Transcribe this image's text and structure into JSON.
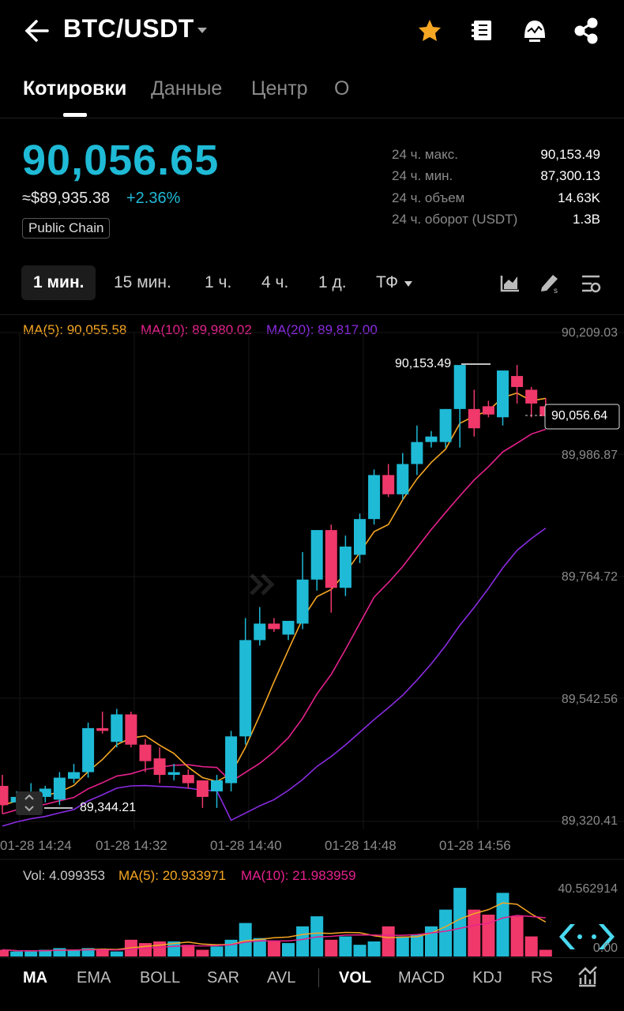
{
  "header": {
    "title": "BTC/USDT"
  },
  "tabs": [
    "Котировки",
    "Данные",
    "Центр",
    "О"
  ],
  "price": {
    "last": "90,056.65",
    "usd": "≈$89,935.38",
    "change": "+2.36%",
    "badge": "Public Chain"
  },
  "stats": [
    {
      "label": "24 ч. макс.",
      "value": "90,153.49"
    },
    {
      "label": "24 ч. мин.",
      "value": "87,300.13"
    },
    {
      "label": "24 ч. объем",
      "value": "14.63K"
    },
    {
      "label": "24 ч. оборот (USDT)",
      "value": "1.3B"
    }
  ],
  "timeframes": [
    "1 мин.",
    "15 мин.",
    "1 ч.",
    "4 ч.",
    "1 д.",
    "ТФ"
  ],
  "ma": {
    "ma5": "MA(5): 90,055.58",
    "ma10": "MA(10): 89,980.02",
    "ma20": "MA(20): 89,817.00"
  },
  "yaxis": [
    "90,209.03",
    "89,986.87",
    "89,764.72",
    "89,542.56",
    "89,320.41"
  ],
  "high_label": "90,153.49",
  "low_label": "89,344.21",
  "current_label": "90,056.64",
  "xaxis": [
    "01-28 14:24",
    "01-28 14:32",
    "01-28 14:40",
    "01-28 14:48",
    "01-28 14:56"
  ],
  "volume": {
    "vol": "Vol: 4.099353",
    "ma5": "MA(5): 20.933971",
    "ma10": "MA(10): 21.983959",
    "max": "40.562914",
    "zero": "0.00"
  },
  "indicators": [
    "MA",
    "EMA",
    "BOLL",
    "SAR",
    "AVL",
    "VOL",
    "MACD",
    "KDJ",
    "RS"
  ],
  "colors": {
    "up": "#1fbad6",
    "down": "#f0386b",
    "ma5": "#f5a623",
    "ma10": "#e6218d",
    "ma20": "#8a2be2"
  },
  "chart_data": {
    "type": "candlestick",
    "y_range": [
      89320.41,
      90209.03
    ],
    "volume_range": [
      0,
      40.562914
    ],
    "candles": [
      {
        "o": 89385,
        "h": 89405,
        "l": 89335,
        "c": 89350,
        "v": 4
      },
      {
        "o": 89355,
        "h": 89375,
        "l": 89340,
        "c": 89365,
        "v": 3
      },
      {
        "o": 89350,
        "h": 89390,
        "l": 89340,
        "c": 89375,
        "v": 3
      },
      {
        "o": 89365,
        "h": 89385,
        "l": 89355,
        "c": 89380,
        "v": 4
      },
      {
        "o": 89360,
        "h": 89410,
        "l": 89350,
        "c": 89400,
        "v": 5
      },
      {
        "o": 89398,
        "h": 89425,
        "l": 89390,
        "c": 89410,
        "v": 4
      },
      {
        "o": 89410,
        "h": 89500,
        "l": 89400,
        "c": 89490,
        "v": 5
      },
      {
        "o": 89490,
        "h": 89520,
        "l": 89480,
        "c": 89485,
        "v": 4
      },
      {
        "o": 89465,
        "h": 89525,
        "l": 89455,
        "c": 89515,
        "v": 3
      },
      {
        "o": 89515,
        "h": 89520,
        "l": 89455,
        "c": 89460,
        "v": 10
      },
      {
        "o": 89460,
        "h": 89470,
        "l": 89410,
        "c": 89430,
        "v": 8
      },
      {
        "o": 89435,
        "h": 89455,
        "l": 89390,
        "c": 89405,
        "v": 9
      },
      {
        "o": 89405,
        "h": 89425,
        "l": 89395,
        "c": 89410,
        "v": 9
      },
      {
        "o": 89405,
        "h": 89415,
        "l": 89380,
        "c": 89390,
        "v": 7
      },
      {
        "o": 89395,
        "h": 89395,
        "l": 89345,
        "c": 89365,
        "v": 4
      },
      {
        "o": 89375,
        "h": 89405,
        "l": 89345,
        "c": 89395,
        "v": 6
      },
      {
        "o": 89390,
        "h": 89485,
        "l": 89375,
        "c": 89475,
        "v": 10
      },
      {
        "o": 89475,
        "h": 89690,
        "l": 89460,
        "c": 89650,
        "v": 20
      },
      {
        "o": 89650,
        "h": 89710,
        "l": 89640,
        "c": 89680,
        "v": 11
      },
      {
        "o": 89680,
        "h": 89690,
        "l": 89665,
        "c": 89670,
        "v": 9
      },
      {
        "o": 89660,
        "h": 89685,
        "l": 89650,
        "c": 89685,
        "v": 8
      },
      {
        "o": 89680,
        "h": 89810,
        "l": 89670,
        "c": 89760,
        "v": 18
      },
      {
        "o": 89760,
        "h": 89850,
        "l": 89740,
        "c": 89850,
        "v": 24
      },
      {
        "o": 89850,
        "h": 89860,
        "l": 89700,
        "c": 89745,
        "v": 10
      },
      {
        "o": 89745,
        "h": 89840,
        "l": 89730,
        "c": 89820,
        "v": 12
      },
      {
        "o": 89805,
        "h": 89880,
        "l": 89790,
        "c": 89870,
        "v": 7
      },
      {
        "o": 89870,
        "h": 89960,
        "l": 89860,
        "c": 89950,
        "v": 9
      },
      {
        "o": 89950,
        "h": 89970,
        "l": 89910,
        "c": 89915,
        "v": 18
      },
      {
        "o": 89915,
        "h": 89990,
        "l": 89905,
        "c": 89970,
        "v": 12
      },
      {
        "o": 89970,
        "h": 90040,
        "l": 89950,
        "c": 90010,
        "v": 13
      },
      {
        "o": 90010,
        "h": 90030,
        "l": 90000,
        "c": 90020,
        "v": 18
      },
      {
        "o": 90010,
        "h": 90070,
        "l": 90000,
        "c": 90070,
        "v": 28
      },
      {
        "o": 90070,
        "h": 90150,
        "l": 90000,
        "c": 90150,
        "v": 41
      },
      {
        "o": 90070,
        "h": 90105,
        "l": 90020,
        "c": 90035,
        "v": 28
      },
      {
        "o": 90075,
        "h": 90085,
        "l": 90055,
        "c": 90060,
        "v": 25
      },
      {
        "o": 90055,
        "h": 90135,
        "l": 90040,
        "c": 90140,
        "v": 38
      },
      {
        "o": 90130,
        "h": 90150,
        "l": 90080,
        "c": 90110,
        "v": 24
      },
      {
        "o": 90105,
        "h": 90110,
        "l": 90055,
        "c": 90080,
        "v": 12
      },
      {
        "o": 90075,
        "h": 90090,
        "l": 90060,
        "c": 90057,
        "v": 4
      }
    ]
  }
}
